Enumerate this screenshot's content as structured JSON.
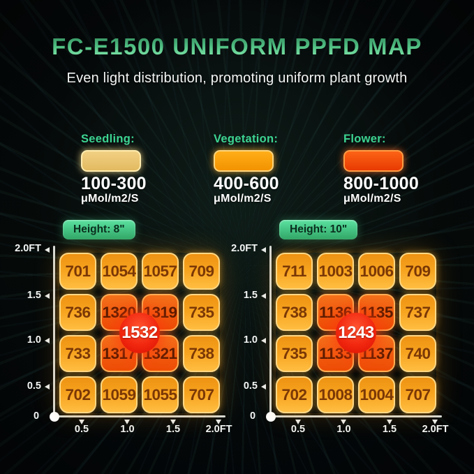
{
  "header": {
    "title": "FC-E1500 UNIFORM PPFD MAP",
    "subtitle": "Even light distribution, promoting uniform plant growth"
  },
  "legend": {
    "label_color": "#3dd492",
    "items": [
      {
        "label": "Seedling:",
        "range": "100-300",
        "unit": "μMol/m2/S",
        "swatch_color": "#e7c272"
      },
      {
        "label": "Vegetation:",
        "range": "400-600",
        "unit": "μMol/m2/S",
        "swatch_color": "#ffa312"
      },
      {
        "label": "Flower:",
        "range": "800-1000",
        "unit": "μMol/m2/S",
        "swatch_color": "#f14e08"
      }
    ]
  },
  "chart_data": [
    {
      "type": "heatmap",
      "title": "Height: 8\"",
      "units": "μMol/m2/S",
      "axis_unit": "FT",
      "axes": {
        "y_ticks": [
          "2.0FT",
          "1.5",
          "1.0",
          "0.5"
        ],
        "origin": "0",
        "x_ticks": [
          "0.5",
          "1.0",
          "1.5",
          "2.0FT"
        ]
      },
      "values": [
        [
          701,
          1054,
          1057,
          709
        ],
        [
          736,
          1320,
          1319,
          735
        ],
        [
          733,
          1317,
          1321,
          738
        ],
        [
          702,
          1059,
          1055,
          707
        ]
      ],
      "center_value": 1532
    },
    {
      "type": "heatmap",
      "title": "Height: 10\"",
      "units": "μMol/m2/S",
      "axis_unit": "FT",
      "axes": {
        "y_ticks": [
          "2.0FT",
          "1.5",
          "1.0",
          "0.5"
        ],
        "origin": "0",
        "x_ticks": [
          "0.5",
          "1.0",
          "1.5",
          "2.0FT"
        ]
      },
      "values": [
        [
          711,
          1003,
          1006,
          709
        ],
        [
          738,
          1136,
          1135,
          737
        ],
        [
          735,
          1133,
          1137,
          740
        ],
        [
          702,
          1008,
          1004,
          707
        ]
      ],
      "center_value": 1243
    }
  ],
  "colors": {
    "title_gradient_top": "#2f8257",
    "title_gradient_bottom": "#90f1b6",
    "cell_normal": "#f8a41e",
    "cell_hot": "#f15c10",
    "peak_badge": "#e81607",
    "height_badge": "#3fcb8a",
    "axis": "#d7dcda",
    "hot_threshold": 1100
  }
}
